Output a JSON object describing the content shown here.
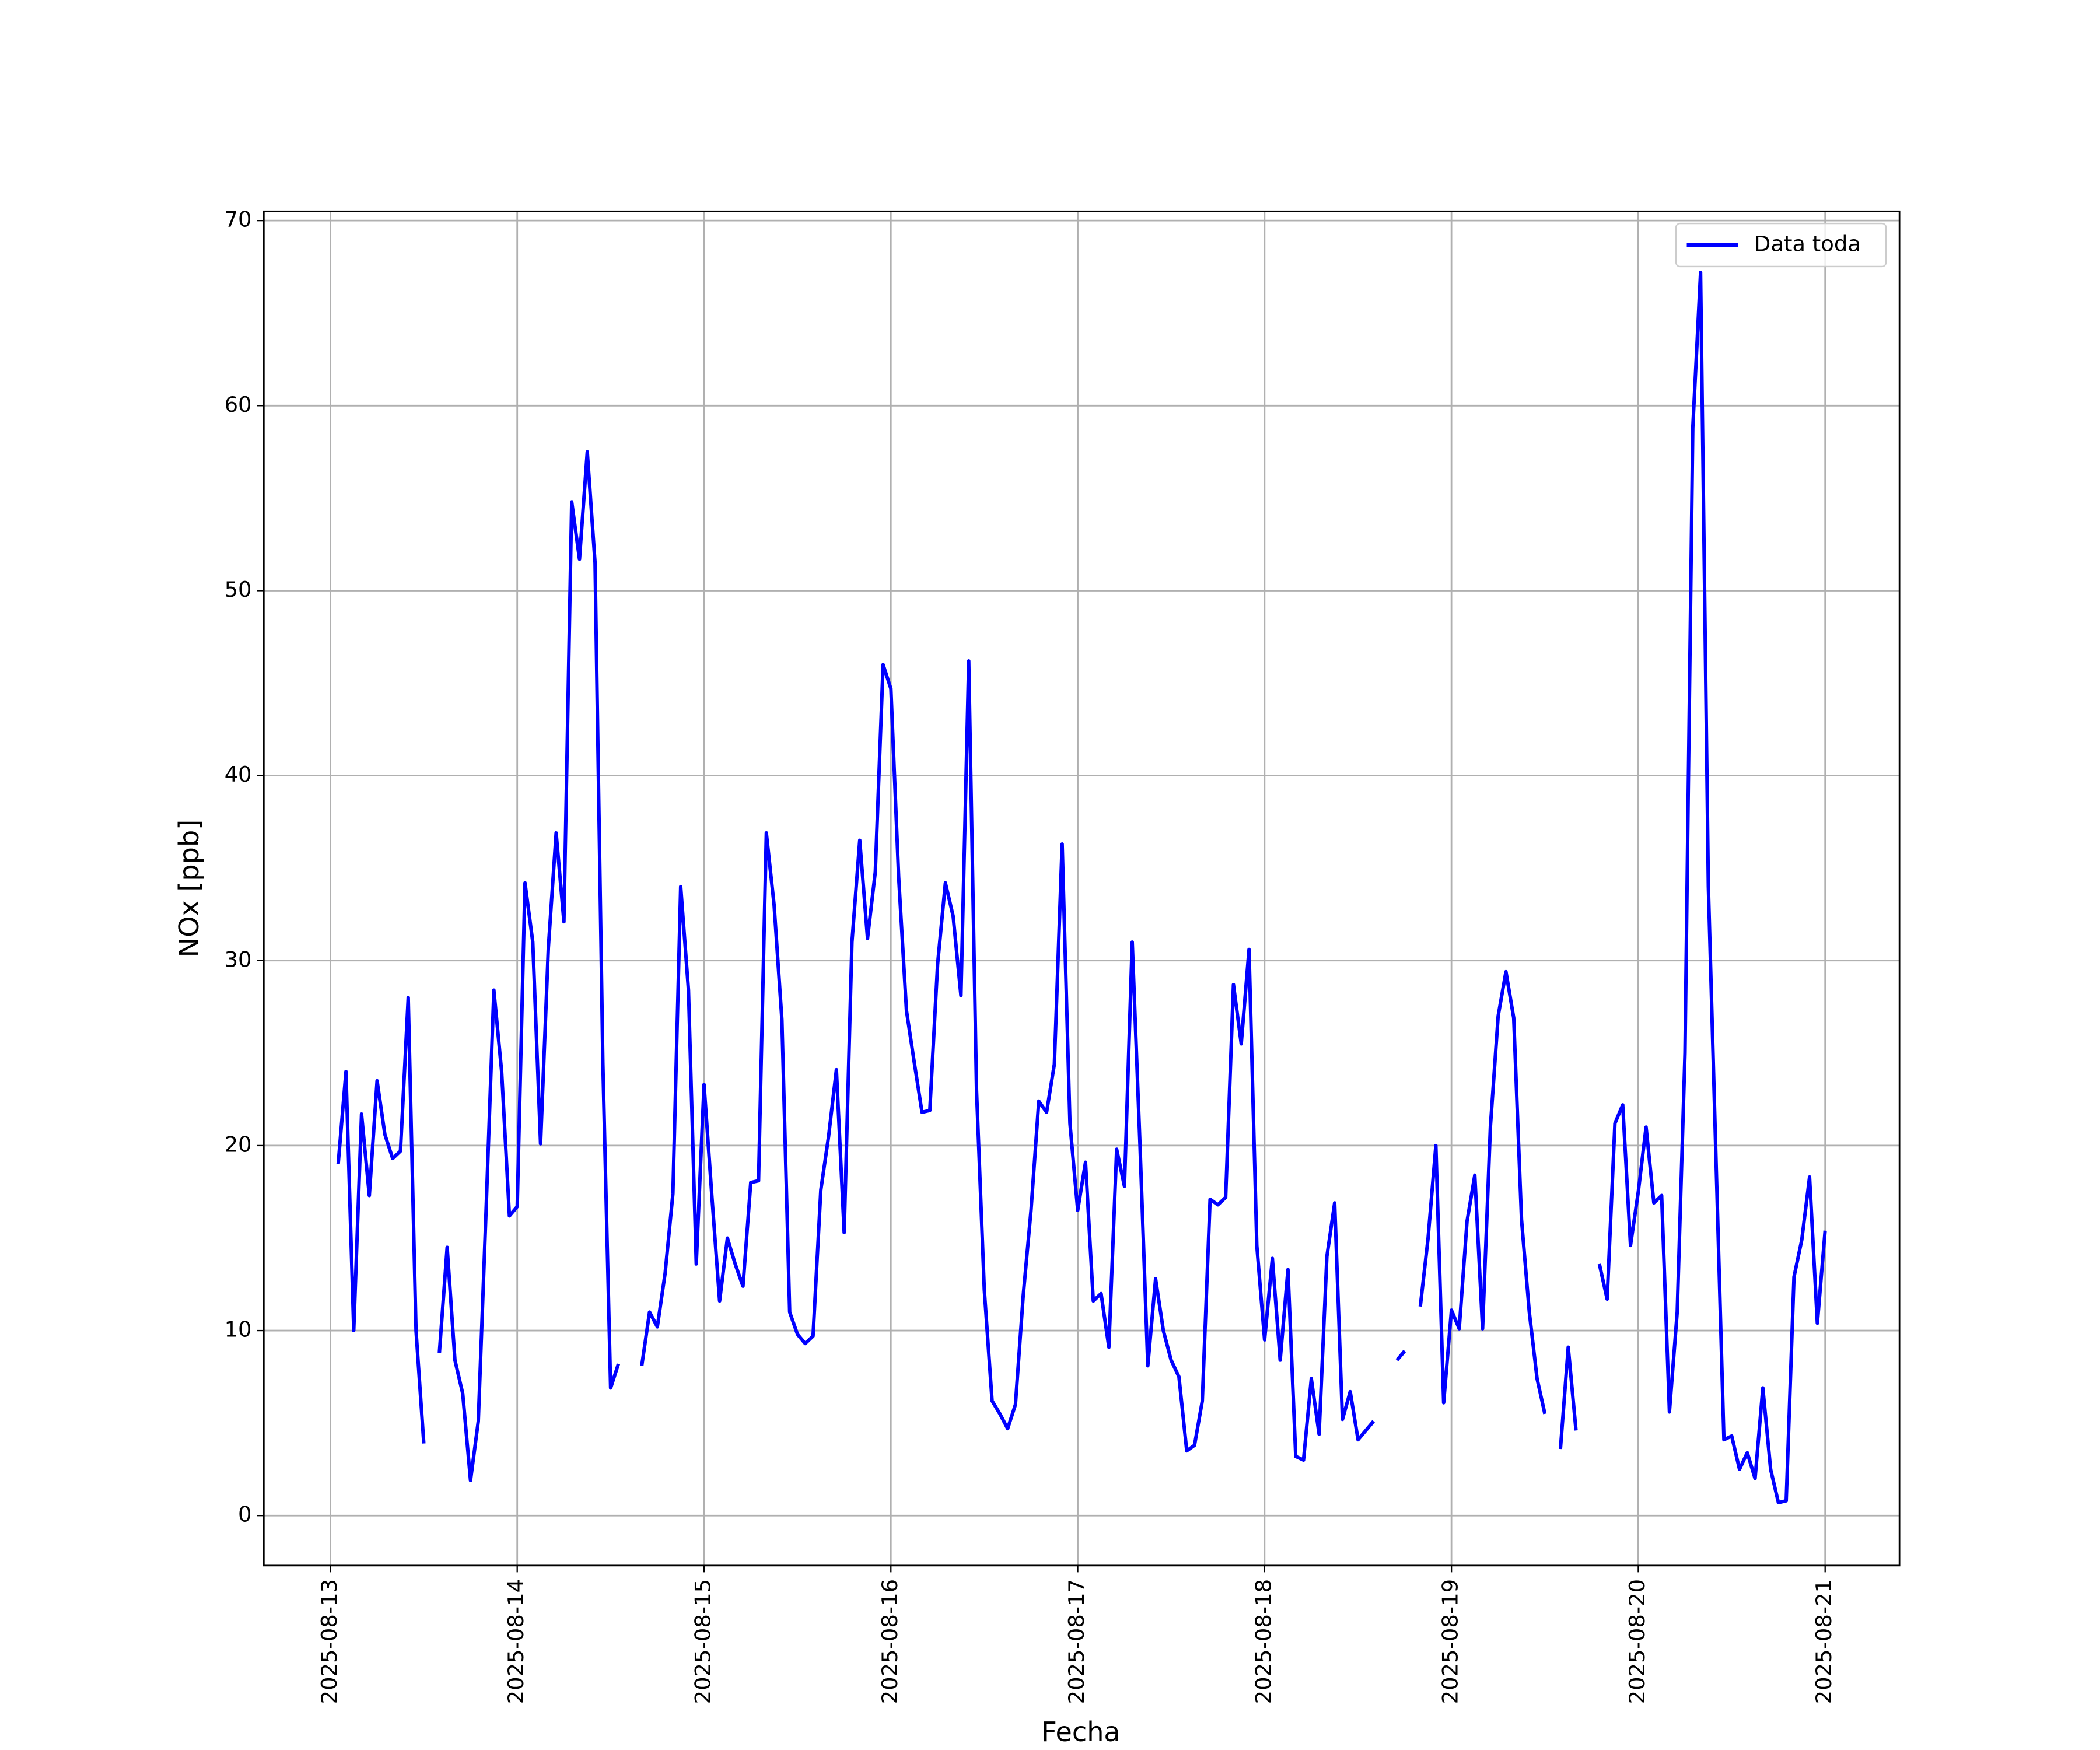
{
  "chart_data": {
    "type": "line",
    "xlabel": "Fecha",
    "ylabel": "NOx [ppb]",
    "xlim": [
      "2025-08-12 15:27",
      "2025-08-21 09:33"
    ],
    "xticks": [
      "2025-08-13",
      "2025-08-14",
      "2025-08-15",
      "2025-08-16",
      "2025-08-17",
      "2025-08-18",
      "2025-08-19",
      "2025-08-20",
      "2025-08-21"
    ],
    "ylim": [
      -2.7,
      70.5
    ],
    "yticks": [
      0,
      10,
      20,
      30,
      40,
      50,
      60,
      70
    ],
    "grid": true,
    "legend": "upper right",
    "x": [
      "2025-08-13 01:00",
      "2025-08-13 02:00",
      "2025-08-13 03:00",
      "2025-08-13 04:00",
      "2025-08-13 05:00",
      "2025-08-13 06:00",
      "2025-08-13 07:00",
      "2025-08-13 08:00",
      "2025-08-13 09:00",
      "2025-08-13 10:00",
      "2025-08-13 11:00",
      "2025-08-13 12:00",
      "2025-08-13 13:00",
      "2025-08-13 14:00",
      "2025-08-13 15:00",
      "2025-08-13 16:00",
      "2025-08-13 17:00",
      "2025-08-13 18:00",
      "2025-08-13 19:00",
      "2025-08-13 20:00",
      "2025-08-13 21:00",
      "2025-08-13 22:00",
      "2025-08-13 23:00",
      "2025-08-14 00:00",
      "2025-08-14 01:00",
      "2025-08-14 02:00",
      "2025-08-14 03:00",
      "2025-08-14 04:00",
      "2025-08-14 05:00",
      "2025-08-14 06:00",
      "2025-08-14 07:00",
      "2025-08-14 08:00",
      "2025-08-14 09:00",
      "2025-08-14 10:00",
      "2025-08-14 11:00",
      "2025-08-14 12:00",
      "2025-08-14 13:00",
      "2025-08-14 14:00",
      "2025-08-14 15:00",
      "2025-08-14 16:00",
      "2025-08-14 17:00",
      "2025-08-14 18:00",
      "2025-08-14 19:00",
      "2025-08-14 20:00",
      "2025-08-14 21:00",
      "2025-08-14 22:00",
      "2025-08-14 23:00",
      "2025-08-15 00:00",
      "2025-08-15 01:00",
      "2025-08-15 02:00",
      "2025-08-15 03:00",
      "2025-08-15 04:00",
      "2025-08-15 05:00",
      "2025-08-15 06:00",
      "2025-08-15 07:00",
      "2025-08-15 08:00",
      "2025-08-15 09:00",
      "2025-08-15 10:00",
      "2025-08-15 11:00",
      "2025-08-15 12:00",
      "2025-08-15 13:00",
      "2025-08-15 14:00",
      "2025-08-15 15:00",
      "2025-08-15 16:00",
      "2025-08-15 17:00",
      "2025-08-15 18:00",
      "2025-08-15 19:00",
      "2025-08-15 20:00",
      "2025-08-15 21:00",
      "2025-08-15 22:00",
      "2025-08-15 23:00",
      "2025-08-16 00:00",
      "2025-08-16 01:00",
      "2025-08-16 02:00",
      "2025-08-16 03:00",
      "2025-08-16 04:00",
      "2025-08-16 05:00",
      "2025-08-16 06:00",
      "2025-08-16 07:00",
      "2025-08-16 08:00",
      "2025-08-16 09:00",
      "2025-08-16 10:00",
      "2025-08-16 11:00",
      "2025-08-16 12:00",
      "2025-08-16 13:00",
      "2025-08-16 14:00",
      "2025-08-16 15:00",
      "2025-08-16 16:00",
      "2025-08-16 17:00",
      "2025-08-16 18:00",
      "2025-08-16 19:00",
      "2025-08-16 20:00",
      "2025-08-16 21:00",
      "2025-08-16 22:00",
      "2025-08-16 23:00",
      "2025-08-17 00:00",
      "2025-08-17 01:00",
      "2025-08-17 02:00",
      "2025-08-17 03:00",
      "2025-08-17 04:00",
      "2025-08-17 05:00",
      "2025-08-17 06:00",
      "2025-08-17 07:00",
      "2025-08-17 08:00",
      "2025-08-17 09:00",
      "2025-08-17 10:00",
      "2025-08-17 11:00",
      "2025-08-17 12:00",
      "2025-08-17 13:00",
      "2025-08-17 14:00",
      "2025-08-17 15:00",
      "2025-08-17 16:00",
      "2025-08-17 17:00",
      "2025-08-17 18:00",
      "2025-08-17 19:00",
      "2025-08-17 20:00",
      "2025-08-17 21:00",
      "2025-08-17 22:00",
      "2025-08-17 23:00",
      "2025-08-18 00:00",
      "2025-08-18 01:00",
      "2025-08-18 02:00",
      "2025-08-18 03:00",
      "2025-08-18 04:00",
      "2025-08-18 05:00",
      "2025-08-18 06:00",
      "2025-08-18 07:00",
      "2025-08-18 08:00",
      "2025-08-18 09:00",
      "2025-08-18 10:00",
      "2025-08-18 11:00",
      "2025-08-18 12:00",
      "2025-08-18 13:00",
      "2025-08-18 14:00",
      "2025-08-18 15:00",
      "2025-08-18 16:00",
      "2025-08-18 17:00",
      "2025-08-18 18:00",
      "2025-08-18 19:00",
      "2025-08-18 20:00",
      "2025-08-18 21:00",
      "2025-08-18 22:00",
      "2025-08-18 23:00",
      "2025-08-19 00:00",
      "2025-08-19 01:00",
      "2025-08-19 02:00",
      "2025-08-19 03:00",
      "2025-08-19 04:00",
      "2025-08-19 05:00",
      "2025-08-19 06:00",
      "2025-08-19 07:00",
      "2025-08-19 08:00",
      "2025-08-19 09:00",
      "2025-08-19 10:00",
      "2025-08-19 11:00",
      "2025-08-19 12:00",
      "2025-08-19 13:00",
      "2025-08-19 14:00",
      "2025-08-19 15:00",
      "2025-08-19 16:00",
      "2025-08-19 17:00",
      "2025-08-19 18:00",
      "2025-08-19 19:00",
      "2025-08-19 20:00",
      "2025-08-19 21:00",
      "2025-08-19 22:00",
      "2025-08-19 23:00",
      "2025-08-20 00:00",
      "2025-08-20 01:00",
      "2025-08-20 02:00",
      "2025-08-20 03:00",
      "2025-08-20 04:00",
      "2025-08-20 05:00",
      "2025-08-20 06:00",
      "2025-08-20 07:00",
      "2025-08-20 08:00",
      "2025-08-20 09:00",
      "2025-08-20 10:00",
      "2025-08-20 11:00",
      "2025-08-20 12:00",
      "2025-08-20 13:00",
      "2025-08-20 14:00",
      "2025-08-20 15:00",
      "2025-08-20 16:00",
      "2025-08-20 17:00",
      "2025-08-20 18:00",
      "2025-08-20 19:00",
      "2025-08-20 20:00",
      "2025-08-20 21:00",
      "2025-08-20 22:00",
      "2025-08-20 23:00",
      "2025-08-21 00:00"
    ],
    "series": [
      {
        "name": "Data toda",
        "color": "#0000ff",
        "values": [
          19,
          24,
          10,
          21.7,
          17.3,
          23.5,
          20.6,
          19.3,
          19.7,
          28,
          10,
          3.9,
          null,
          8.8,
          14.5,
          8.4,
          6.6,
          1.9,
          5.1,
          16.5,
          28.4,
          24,
          16.2,
          16.7,
          34.2,
          31,
          20.1,
          30.7,
          36.9,
          32.1,
          54.8,
          51.7,
          57.5,
          51.5,
          24.5,
          6.9,
          8.2,
          null,
          null,
          8.1,
          11,
          10.2,
          13.1,
          17.4,
          34,
          28.4,
          13.6,
          23.3,
          17.3,
          11.6,
          15,
          13.6,
          12.4,
          18,
          18.1,
          36.9,
          33,
          26.8,
          11,
          9.8,
          9.3,
          9.7,
          17.6,
          20.5,
          24.1,
          15.3,
          31,
          36.5,
          31.2,
          34.8,
          46,
          44.7,
          34.5,
          27.3,
          24.5,
          21.8,
          21.9,
          29.8,
          34.2,
          32.4,
          28.1,
          46.2,
          23,
          12.2,
          6.2,
          5.5,
          4.7,
          6,
          11.9,
          16.5,
          22.4,
          21.8,
          24.4,
          36.3,
          21.2,
          16.5,
          19.1,
          11.6,
          12,
          9.1,
          19.8,
          17.8,
          31,
          20,
          8.1,
          12.8,
          10,
          8.4,
          7.5,
          3.5,
          3.8,
          6.2,
          17.1,
          16.8,
          17.2,
          28.7,
          25.5,
          30.6,
          14.6,
          9.5,
          13.9,
          8.4,
          13.3,
          3.2,
          3,
          7.4,
          4.4,
          14,
          16.9,
          5.2,
          6.7,
          4.1,
          4.6,
          5.1,
          null,
          null,
          8.4,
          8.9,
          null,
          11.3,
          15,
          20,
          6.1,
          11.1,
          10.1,
          15.9,
          18.4,
          10.1,
          21,
          27,
          29.4,
          26.9,
          16,
          11,
          7.4,
          5.5,
          null,
          3.6,
          9.1,
          4.6,
          null,
          null,
          13.6,
          11.7,
          21.2,
          22.2,
          14.6,
          17.5,
          21,
          16.9,
          17.3,
          5.6,
          11,
          25,
          58.8,
          67.2,
          34,
          19,
          4.1,
          4.3,
          2.5,
          3.4,
          2,
          6.9,
          2.5,
          0.7,
          0.8,
          12.9,
          14.9,
          18.3,
          10.4,
          15.4
        ]
      }
    ]
  }
}
